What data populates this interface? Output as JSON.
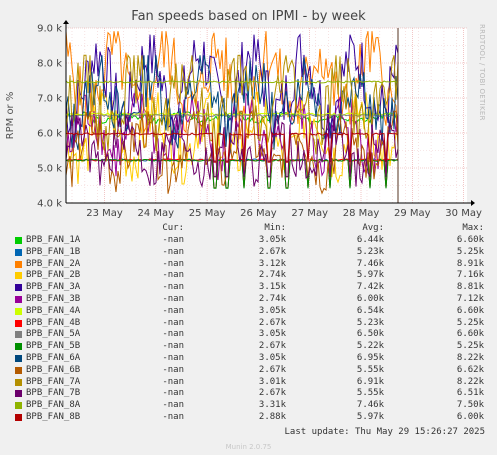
{
  "chart_data": {
    "type": "line",
    "title": "Fan speeds based on IPMI - by week",
    "ylabel": "RPM or %",
    "ylim": [
      4000,
      9000
    ],
    "y_ticks": [
      4000,
      5000,
      6000,
      7000,
      8000,
      9000
    ],
    "y_tick_labels": [
      "4.0 k",
      "5.0 k",
      "6.0 k",
      "7.0 k",
      "8.0 k",
      "9.0 k"
    ],
    "x_tick_labels": [
      "23 May",
      "24 May",
      "25 May",
      "26 May",
      "27 May",
      "28 May",
      "29 May",
      "30 May"
    ],
    "grid": true,
    "side_label": "RRDTOOL / TOBI OETIKER",
    "columns": {
      "cur": "Cur:",
      "min": "Min:",
      "avg": "Avg:",
      "max": "Max:"
    },
    "series": [
      {
        "name": "BPB_FAN_1A",
        "color": "#00cc00",
        "cur": "-nan",
        "min": "3.05k",
        "avg": "6.44k",
        "max": "6.60k",
        "min_val": 3050,
        "avg_val": 6440,
        "max_val": 6600
      },
      {
        "name": "BPB_FAN_1B",
        "color": "#0066b3",
        "cur": "-nan",
        "min": "2.67k",
        "avg": "5.23k",
        "max": "5.25k",
        "min_val": 2670,
        "avg_val": 5230,
        "max_val": 5250
      },
      {
        "name": "BPB_FAN_2A",
        "color": "#ff8000",
        "cur": "-nan",
        "min": "3.12k",
        "avg": "7.46k",
        "max": "8.91k",
        "min_val": 3120,
        "avg_val": 7460,
        "max_val": 8910
      },
      {
        "name": "BPB_FAN_2B",
        "color": "#ffcc00",
        "cur": "-nan",
        "min": "2.74k",
        "avg": "5.97k",
        "max": "7.16k",
        "min_val": 2740,
        "avg_val": 5970,
        "max_val": 7160
      },
      {
        "name": "BPB_FAN_3A",
        "color": "#330099",
        "cur": "-nan",
        "min": "3.15k",
        "avg": "7.42k",
        "max": "8.81k",
        "min_val": 3150,
        "avg_val": 7420,
        "max_val": 8810
      },
      {
        "name": "BPB_FAN_3B",
        "color": "#990099",
        "cur": "-nan",
        "min": "2.74k",
        "avg": "6.00k",
        "max": "7.12k",
        "min_val": 2740,
        "avg_val": 6000,
        "max_val": 7120
      },
      {
        "name": "BPB_FAN_4A",
        "color": "#ccff00",
        "cur": "-nan",
        "min": "3.05k",
        "avg": "6.54k",
        "max": "6.60k",
        "min_val": 3050,
        "avg_val": 6540,
        "max_val": 6600
      },
      {
        "name": "BPB_FAN_4B",
        "color": "#ff0000",
        "cur": "-nan",
        "min": "2.67k",
        "avg": "5.23k",
        "max": "5.25k",
        "min_val": 2670,
        "avg_val": 5230,
        "max_val": 5250
      },
      {
        "name": "BPB_FAN_5A",
        "color": "#808080",
        "cur": "-nan",
        "min": "3.05k",
        "avg": "6.50k",
        "max": "6.60k",
        "min_val": 3050,
        "avg_val": 6500,
        "max_val": 6600
      },
      {
        "name": "BPB_FAN_5B",
        "color": "#008f00",
        "cur": "-nan",
        "min": "2.67k",
        "avg": "5.22k",
        "max": "5.25k",
        "min_val": 2670,
        "avg_val": 5220,
        "max_val": 5250
      },
      {
        "name": "BPB_FAN_6A",
        "color": "#00487d",
        "cur": "-nan",
        "min": "3.05k",
        "avg": "6.95k",
        "max": "8.22k",
        "min_val": 3050,
        "avg_val": 6950,
        "max_val": 8220
      },
      {
        "name": "BPB_FAN_6B",
        "color": "#b35a00",
        "cur": "-nan",
        "min": "2.67k",
        "avg": "5.55k",
        "max": "6.62k",
        "min_val": 2670,
        "avg_val": 5550,
        "max_val": 6620
      },
      {
        "name": "BPB_FAN_7A",
        "color": "#b38f00",
        "cur": "-nan",
        "min": "3.01k",
        "avg": "6.91k",
        "max": "8.22k",
        "min_val": 3010,
        "avg_val": 6910,
        "max_val": 8220
      },
      {
        "name": "BPB_FAN_7B",
        "color": "#6b006b",
        "cur": "-nan",
        "min": "2.67k",
        "avg": "5.55k",
        "max": "6.51k",
        "min_val": 2670,
        "avg_val": 5550,
        "max_val": 6510
      },
      {
        "name": "BPB_FAN_8A",
        "color": "#8fb300",
        "cur": "-nan",
        "min": "3.31k",
        "avg": "7.46k",
        "max": "7.50k",
        "min_val": 3310,
        "avg_val": 7460,
        "max_val": 7500
      },
      {
        "name": "BPB_FAN_8B",
        "color": "#b30000",
        "cur": "-nan",
        "min": "2.88k",
        "avg": "5.97k",
        "max": "6.00k",
        "min_val": 2880,
        "avg_val": 5970,
        "max_val": 6000
      }
    ]
  },
  "footer": {
    "last_update": "Last update: Thu May 29 15:26:27 2025",
    "version": "Munin 2.0.75"
  }
}
